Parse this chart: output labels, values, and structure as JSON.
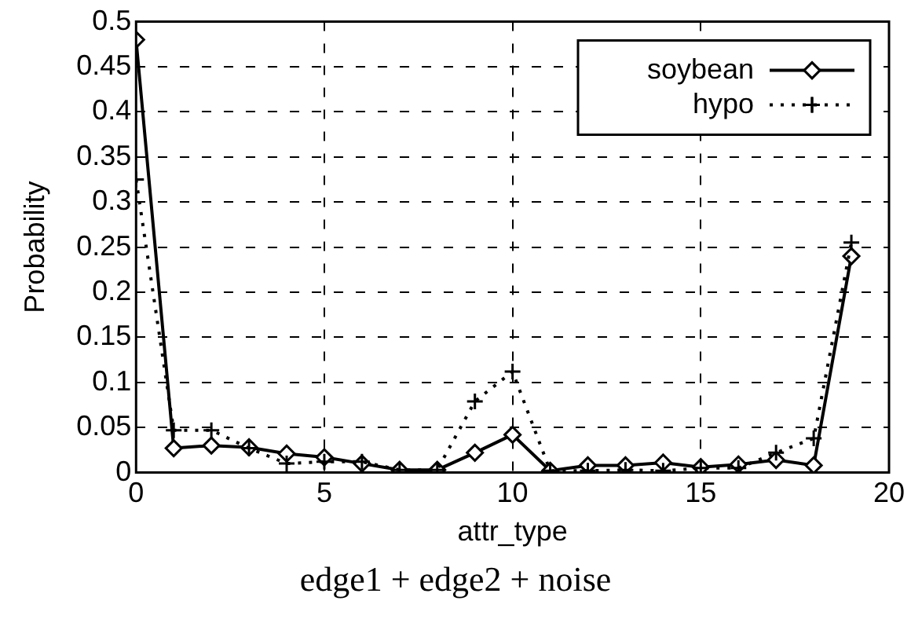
{
  "chart_data": {
    "type": "line",
    "title": "edge1 + edge2 + noise",
    "xlabel": "attr_type",
    "ylabel": "Probability",
    "x": [
      0,
      1,
      2,
      3,
      4,
      5,
      6,
      7,
      8,
      9,
      10,
      11,
      12,
      13,
      14,
      15,
      16,
      17,
      18,
      19
    ],
    "series": [
      {
        "name": "soybean",
        "color": "#000000",
        "marker": "diamond",
        "line_style": "solid",
        "values": [
          0.48,
          0.027,
          0.03,
          0.028,
          0.021,
          0.017,
          0.01,
          0.003,
          0.003,
          0.022,
          0.042,
          0.002,
          0.008,
          0.008,
          0.011,
          0.006,
          0.009,
          0.014,
          0.008,
          0.24
        ]
      },
      {
        "name": "hypo",
        "color": "#000000",
        "marker": "cross",
        "line_style": "dotted",
        "values": [
          0.325,
          0.047,
          0.047,
          0.027,
          0.01,
          0.012,
          0.012,
          0.003,
          0.003,
          0.079,
          0.112,
          0.002,
          0.002,
          0.003,
          0.002,
          0.005,
          0.005,
          0.022,
          0.038,
          0.255
        ]
      }
    ],
    "xlim": [
      0,
      20
    ],
    "xticks": [
      0,
      5,
      10,
      15,
      20
    ],
    "ylim": [
      0,
      0.5
    ],
    "yticks": [
      0,
      0.05,
      0.1,
      0.15,
      0.2,
      0.25,
      0.3,
      0.35,
      0.4,
      0.45,
      0.5
    ],
    "grid": true,
    "legend": "top right"
  }
}
